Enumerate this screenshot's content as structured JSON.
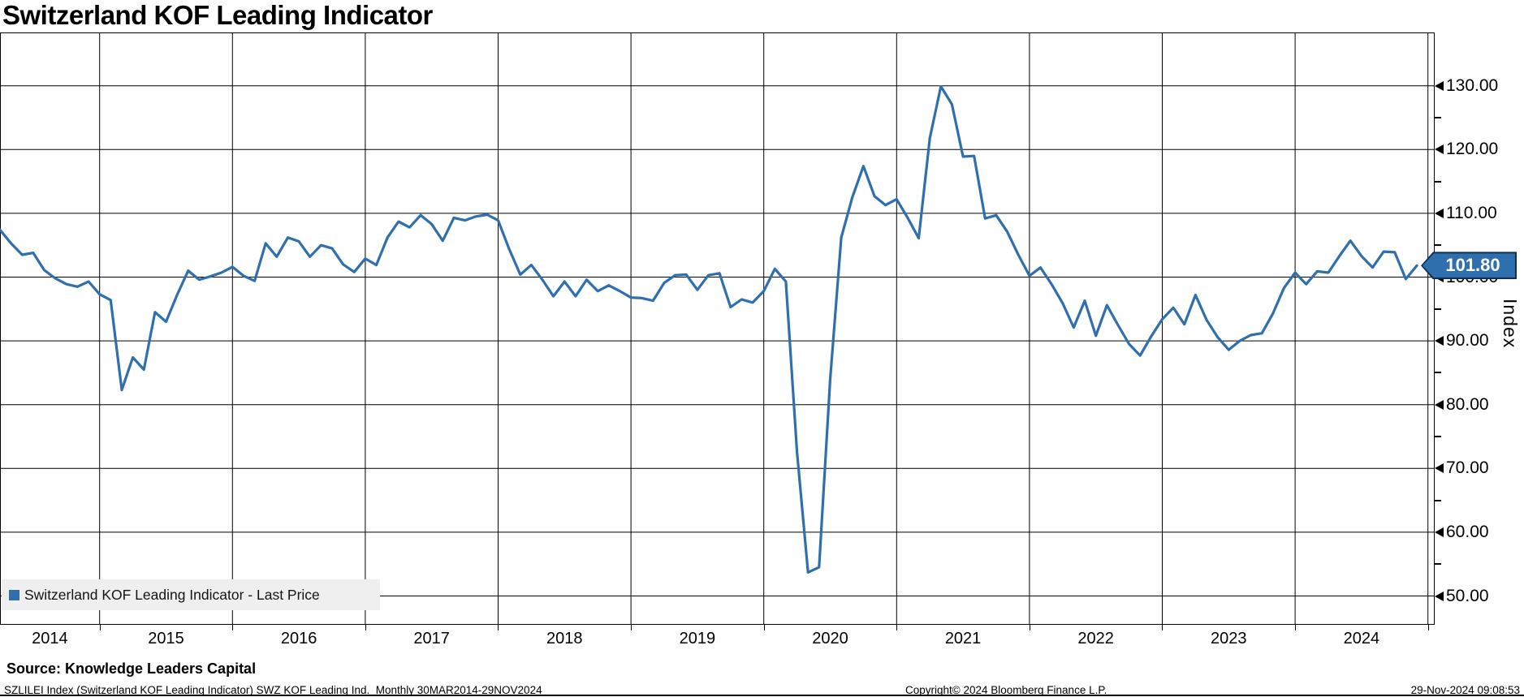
{
  "header": {
    "title": "Switzerland KOF Leading Indicator"
  },
  "legend": {
    "label": "Switzerland KOF Leading Indicator - Last Price",
    "marker_color": "#2f6fad"
  },
  "last_price": {
    "value": "101.80"
  },
  "y_axis": {
    "title": "Index",
    "major_labels": [
      "130.00",
      "120.00",
      "110.00",
      "100.00",
      "90.00",
      "80.00",
      "70.00",
      "60.00",
      "50.00"
    ],
    "major_values": [
      130,
      120,
      110,
      100,
      90,
      80,
      70,
      60,
      50
    ],
    "minor_values": [
      125,
      115,
      105,
      95,
      85,
      75,
      65,
      55
    ]
  },
  "x_axis": {
    "years": [
      "2014",
      "2015",
      "2016",
      "2017",
      "2018",
      "2019",
      "2020",
      "2021",
      "2022",
      "2023",
      "2024"
    ]
  },
  "footer": {
    "source": "Source: Knowledge Leaders Capital",
    "meta": "SZLILEI Index (Switzerland KOF Leading Indicator) SWZ KOF Leading Ind.  Monthly 30MAR2014-29NOV2024",
    "copyright": "Copyright© 2024 Bloomberg Finance L.P.",
    "timestamp": "29-Nov-2024 09:08:53"
  },
  "chart_data": {
    "type": "line",
    "title": "Switzerland KOF Leading Indicator",
    "series_name": "Switzerland KOF Leading Indicator - Last Price",
    "color": "#2f6fad",
    "grid": true,
    "legend_position": "bottom-left",
    "frequency": "monthly",
    "x_start": "2014-03",
    "x_end": "2024-11",
    "xlabel": "",
    "ylabel": "Index",
    "ylim": [
      45.5,
      138.4
    ],
    "last_value": 101.8,
    "values": [
      107.4,
      105.3,
      103.5,
      103.8,
      101.1,
      99.8,
      98.9,
      98.5,
      99.3,
      97.3,
      96.4,
      82.3,
      87.4,
      85.5,
      94.5,
      93.0,
      97.2,
      101.0,
      99.6,
      100.1,
      100.7,
      101.6,
      100.2,
      99.4,
      105.3,
      103.2,
      106.2,
      105.6,
      103.2,
      105.0,
      104.5,
      102.0,
      100.8,
      102.9,
      101.9,
      106.2,
      108.7,
      107.8,
      109.7,
      108.3,
      105.7,
      109.3,
      108.9,
      109.5,
      109.8,
      108.9,
      104.4,
      100.4,
      101.9,
      99.6,
      97.0,
      99.3,
      97.0,
      99.6,
      97.8,
      98.7,
      97.8,
      96.8,
      96.7,
      96.3,
      99.1,
      100.3,
      100.4,
      98.0,
      100.3,
      100.6,
      95.3,
      96.5,
      96.0,
      97.8,
      101.3,
      99.3,
      72.6,
      53.7,
      54.5,
      84.0,
      106.2,
      112.5,
      117.4,
      112.7,
      111.3,
      112.2,
      109.3,
      106.1,
      121.8,
      129.9,
      127.1,
      118.9,
      119.0,
      109.2,
      109.7,
      107.1,
      103.5,
      100.2,
      101.5,
      98.9,
      95.9,
      92.1,
      96.3,
      90.8,
      95.6,
      92.5,
      89.5,
      87.7,
      90.7,
      93.4,
      95.2,
      92.6,
      97.2,
      93.3,
      90.6,
      88.6,
      90.0,
      90.9,
      91.2,
      94.3,
      98.3,
      100.7,
      98.9,
      100.9,
      100.7,
      103.3,
      105.7,
      103.3,
      101.5,
      104.0,
      103.9,
      99.7,
      101.8
    ]
  }
}
